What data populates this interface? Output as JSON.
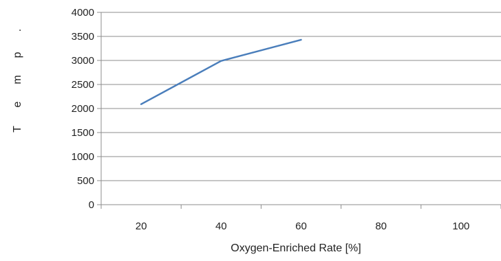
{
  "chart_data": {
    "type": "line",
    "x": [
      20,
      40,
      60
    ],
    "series": [
      {
        "values": [
          2090,
          2990,
          3430
        ]
      }
    ],
    "x_ticks": [
      20,
      40,
      60,
      80,
      100
    ],
    "y_ticks": [
      0,
      500,
      1000,
      1500,
      2000,
      2500,
      3000,
      3500,
      4000
    ],
    "xlabel": "Oxygen-Enriched Rate [%]",
    "ylabel": "Temp.",
    "ylim": [
      0,
      4000
    ],
    "xlim": [
      10,
      110
    ],
    "grid": "horizontal",
    "legend": "none",
    "line_color": "#4a7ebb",
    "grid_color": "#8c8c8c",
    "axis_color": "#8c8c8c"
  }
}
